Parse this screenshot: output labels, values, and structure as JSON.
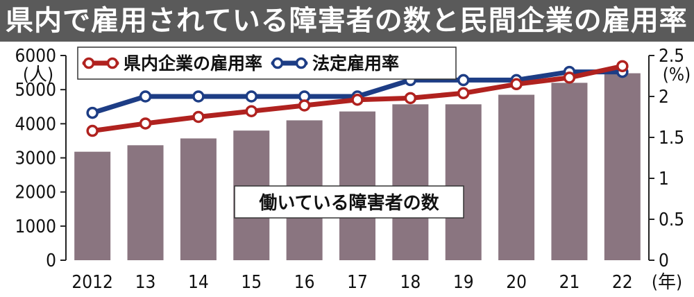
{
  "title": "県内で雇用されている障害者の数と民間企業の雇用率",
  "chart_data": {
    "type": "bar+line",
    "categories": [
      "2012",
      "13",
      "14",
      "15",
      "16",
      "17",
      "18",
      "19",
      "20",
      "21",
      "22"
    ],
    "x_unit": "(年)",
    "bars": {
      "name": "働いている障害者の数",
      "values": [
        3180,
        3370,
        3570,
        3800,
        4100,
        4360,
        4570,
        4570,
        4850,
        5200,
        5480
      ],
      "color": "#8a7580"
    },
    "y_left": {
      "unit": "(人)",
      "ticks": [
        "0",
        "1000",
        "2000",
        "3000",
        "4000",
        "5000",
        "6000"
      ],
      "range": [
        0,
        6000
      ]
    },
    "y_right": {
      "unit": "(%)",
      "ticks": [
        "0",
        "0.5",
        "1",
        "1.5",
        "2",
        "2.5"
      ],
      "range": [
        0,
        2.5
      ]
    },
    "series": [
      {
        "name": "県内企業の雇用率",
        "color": "#b0221f",
        "values": [
          1.58,
          1.67,
          1.75,
          1.82,
          1.89,
          1.96,
          1.98,
          2.04,
          2.15,
          2.23,
          2.37
        ]
      },
      {
        "name": "法定雇用率",
        "color": "#1d3d85",
        "values": [
          1.8,
          2.0,
          2.0,
          2.0,
          2.0,
          2.0,
          2.2,
          2.2,
          2.2,
          2.3,
          2.3
        ]
      }
    ]
  }
}
